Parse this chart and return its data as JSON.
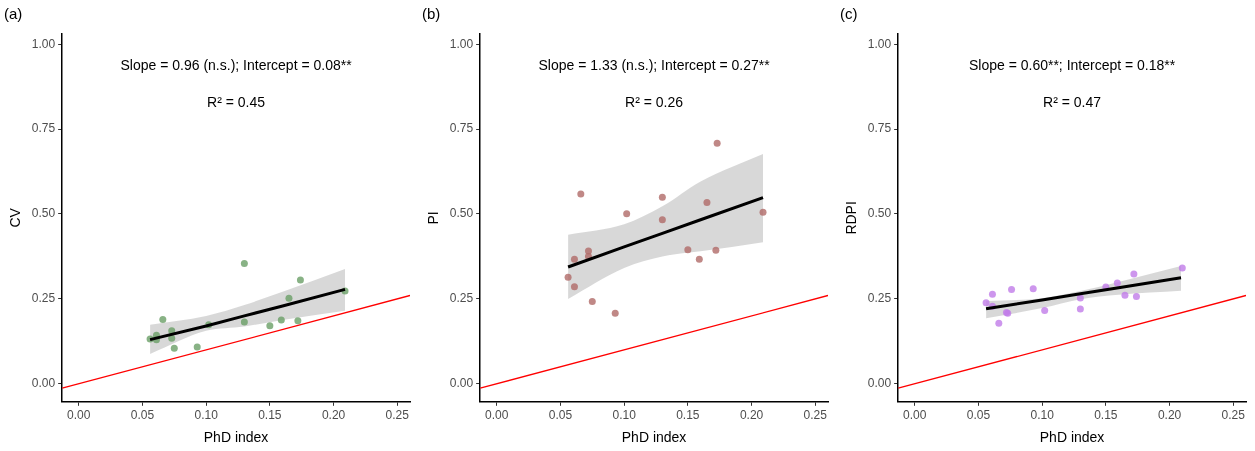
{
  "chart_data": [
    {
      "type": "scatter",
      "title": "(a)",
      "xlabel": "PhD index",
      "ylabel": "CV",
      "xlim": [
        -0.013,
        0.26
      ],
      "ylim": [
        -0.053,
        1.03
      ],
      "xticks": [
        {
          "value": 0,
          "label": "0.00"
        },
        {
          "value": 0.05,
          "label": "0.05"
        },
        {
          "value": 0.1,
          "label": "0.10"
        },
        {
          "value": 0.15,
          "label": "0.15"
        },
        {
          "value": 0.2,
          "label": "0.20"
        },
        {
          "value": 0.25,
          "label": "0.25"
        }
      ],
      "yticks": [
        {
          "value": 0,
          "label": "0.00"
        },
        {
          "value": 0.25,
          "label": "0.25"
        },
        {
          "value": 0.5,
          "label": "0.50"
        },
        {
          "value": 0.75,
          "label": "0.75"
        },
        {
          "value": 1,
          "label": "1.00"
        }
      ],
      "grid": false,
      "marker": "circle",
      "annotations": [
        "Slope = 0.96 (n.s.); Intercept = 0.08**",
        "R² = 0.45"
      ],
      "series": [
        {
          "type": "line",
          "color": "#ff0000",
          "marker": "none",
          "x": [
            -0.013,
            0.26
          ],
          "values": [
            -0.013,
            0.26
          ]
        },
        {
          "type": "scatter",
          "color": "#6a9f66",
          "x": [
            0.056,
            0.061,
            0.061,
            0.066,
            0.073,
            0.073,
            0.075,
            0.093,
            0.102,
            0.13,
            0.13,
            0.15,
            0.159,
            0.165,
            0.172,
            0.174,
            0.209
          ],
          "values": [
            0.132,
            0.143,
            0.13,
            0.189,
            0.156,
            0.134,
            0.105,
            0.108,
            0.174,
            0.354,
            0.182,
            0.171,
            0.188,
            0.252,
            0.186,
            0.306,
            0.273
          ]
        },
        {
          "type": "line",
          "color": "#000000",
          "marker": "none",
          "x": [
            0.056,
            0.1,
            0.13,
            0.16,
            0.209
          ],
          "values": [
            0.13,
            0.17,
            0.2,
            0.229,
            0.278
          ],
          "lower": [
            0.088,
            0.156,
            0.169,
            0.188,
            0.215
          ],
          "upper": [
            0.174,
            0.2,
            0.232,
            0.271,
            0.338
          ]
        }
      ]
    },
    {
      "type": "scatter",
      "title": "(b)",
      "xlabel": "PhD index",
      "ylabel": "PI",
      "xlim": [
        -0.013,
        0.26
      ],
      "ylim": [
        -0.053,
        1.03
      ],
      "xticks": [
        {
          "value": 0,
          "label": "0.00"
        },
        {
          "value": 0.05,
          "label": "0.05"
        },
        {
          "value": 0.1,
          "label": "0.10"
        },
        {
          "value": 0.15,
          "label": "0.15"
        },
        {
          "value": 0.2,
          "label": "0.20"
        },
        {
          "value": 0.25,
          "label": "0.25"
        }
      ],
      "yticks": [
        {
          "value": 0,
          "label": "0.00"
        },
        {
          "value": 0.25,
          "label": "0.25"
        },
        {
          "value": 0.5,
          "label": "0.50"
        },
        {
          "value": 0.75,
          "label": "0.75"
        },
        {
          "value": 1,
          "label": "1.00"
        }
      ],
      "grid": false,
      "marker": "circle",
      "annotations": [
        "Slope = 1.33 (n.s.); Intercept = 0.27**",
        "R² = 0.26"
      ],
      "series": [
        {
          "type": "line",
          "color": "#ff0000",
          "marker": "none",
          "x": [
            -0.013,
            0.26
          ],
          "values": [
            -0.013,
            0.26
          ]
        },
        {
          "type": "scatter",
          "color": "#b06a68",
          "x": [
            0.056,
            0.061,
            0.061,
            0.066,
            0.072,
            0.072,
            0.075,
            0.093,
            0.102,
            0.13,
            0.13,
            0.15,
            0.159,
            0.165,
            0.172,
            0.173,
            0.209
          ],
          "values": [
            0.314,
            0.367,
            0.286,
            0.559,
            0.391,
            0.375,
            0.242,
            0.208,
            0.501,
            0.549,
            0.483,
            0.395,
            0.367,
            0.534,
            0.393,
            0.708,
            0.505
          ]
        },
        {
          "type": "line",
          "color": "#000000",
          "marker": "none",
          "x": [
            0.056,
            0.1,
            0.13,
            0.16,
            0.209
          ],
          "values": [
            0.344,
            0.403,
            0.443,
            0.483,
            0.548
          ],
          "lower": [
            0.25,
            0.341,
            0.375,
            0.39,
            0.417
          ],
          "upper": [
            0.439,
            0.47,
            0.523,
            0.596,
            0.677
          ]
        }
      ]
    },
    {
      "type": "scatter",
      "title": "(c)",
      "xlabel": "PhD index",
      "ylabel": "RDPI",
      "xlim": [
        -0.013,
        0.26
      ],
      "ylim": [
        -0.053,
        1.03
      ],
      "xticks": [
        {
          "value": 0,
          "label": "0.00"
        },
        {
          "value": 0.05,
          "label": "0.05"
        },
        {
          "value": 0.1,
          "label": "0.10"
        },
        {
          "value": 0.15,
          "label": "0.15"
        },
        {
          "value": 0.2,
          "label": "0.20"
        },
        {
          "value": 0.25,
          "label": "0.25"
        }
      ],
      "yticks": [
        {
          "value": 0,
          "label": "0.00"
        },
        {
          "value": 0.25,
          "label": "0.25"
        },
        {
          "value": 0.5,
          "label": "0.50"
        },
        {
          "value": 0.75,
          "label": "0.75"
        },
        {
          "value": 1,
          "label": "1.00"
        }
      ],
      "grid": false,
      "marker": "circle",
      "annotations": [
        "Slope = 0.60**; Intercept = 0.18**",
        "R² = 0.47"
      ],
      "series": [
        {
          "type": "line",
          "color": "#ff0000",
          "marker": "none",
          "x": [
            -0.013,
            0.26
          ],
          "values": [
            -0.013,
            0.26
          ]
        },
        {
          "type": "scatter",
          "color": "#c07ce8",
          "x": [
            0.056,
            0.061,
            0.061,
            0.066,
            0.073,
            0.072,
            0.076,
            0.093,
            0.102,
            0.13,
            0.13,
            0.15,
            0.159,
            0.165,
            0.172,
            0.174,
            0.21
          ],
          "values": [
            0.239,
            0.264,
            0.228,
            0.178,
            0.208,
            0.21,
            0.278,
            0.28,
            0.216,
            0.253,
            0.22,
            0.285,
            0.297,
            0.261,
            0.323,
            0.257,
            0.341
          ]
        },
        {
          "type": "line",
          "color": "#000000",
          "marker": "none",
          "x": [
            0.056,
            0.1,
            0.13,
            0.16,
            0.209
          ],
          "values": [
            0.221,
            0.247,
            0.265,
            0.283,
            0.312
          ],
          "lower": [
            0.193,
            0.223,
            0.249,
            0.262,
            0.274
          ],
          "upper": [
            0.244,
            0.252,
            0.273,
            0.3,
            0.347
          ]
        }
      ]
    }
  ]
}
